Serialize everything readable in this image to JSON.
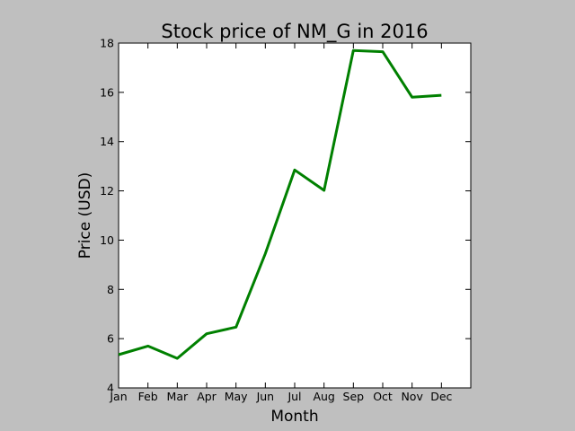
{
  "chart_data": {
    "type": "line",
    "title": "Stock price of NM_G in 2016",
    "xlabel": "Month",
    "ylabel": "Price (USD)",
    "categories": [
      "Jan",
      "Feb",
      "Mar",
      "Apr",
      "May",
      "Jun",
      "Jul",
      "Aug",
      "Sep",
      "Oct",
      "Nov",
      "Dec"
    ],
    "series": [
      {
        "values": [
          5.35,
          5.7,
          5.2,
          6.2,
          6.47,
          9.45,
          12.85,
          12.02,
          17.7,
          17.65,
          15.8,
          15.88
        ],
        "color": "#008000"
      }
    ],
    "ylim": [
      4,
      18
    ],
    "yticks": [
      4,
      6,
      8,
      10,
      12,
      14,
      16,
      18
    ],
    "xlim": [
      0,
      12
    ],
    "grid": false,
    "legend": "none",
    "colors": {
      "background": "#bfbfbf",
      "plot_background": "#ffffff",
      "axes": "#000000"
    }
  }
}
